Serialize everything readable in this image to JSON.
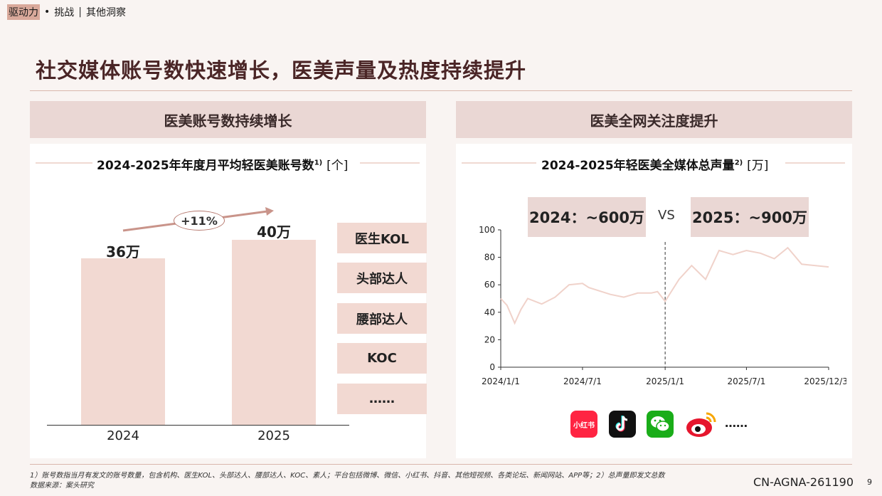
{
  "breadcrumb": {
    "active": "驱动力",
    "separator": "•",
    "item2": "挑战",
    "bar": "|",
    "item3": "其他洞察"
  },
  "page_title": "社交媒体账号数快速增长，医美声量及热度持续提升",
  "left_panel": {
    "header": "医美账号数持续增长",
    "subtitle": "2024-2025年年度月平均轻医美账号数",
    "footnote_mark": "1)",
    "unit": "[个]",
    "growth_label": "+11%",
    "categories": [
      "医生KOL",
      "头部达人",
      "腰部达人",
      "KOC",
      "……"
    ]
  },
  "right_panel": {
    "header": "医美全网关注度提升",
    "subtitle": "2024-2025年轻医美全媒体总声量",
    "footnote_mark": "2)",
    "unit": "[万]",
    "compare_2024": "2024：~600万",
    "vs": "VS",
    "compare_2025": "2025：~900万",
    "platforms_more": "……",
    "platform_icons": [
      "xiaohongshu-icon",
      "douyin-icon",
      "wechat-icon",
      "weibo-icon"
    ],
    "xiaohongshu_label": "小红书"
  },
  "chart_data": [
    {
      "type": "bar",
      "categories": [
        "2024",
        "2025"
      ],
      "values": [
        36,
        40
      ],
      "value_labels": [
        "36万",
        "40万"
      ],
      "ylim": [
        0,
        60
      ]
    },
    {
      "type": "line",
      "x_ticks": [
        "2024/1/1",
        "2024/7/1",
        "2025/1/1",
        "2025/7/1",
        "2025/12/31"
      ],
      "y_ticks": [
        0,
        20,
        40,
        60,
        80,
        100
      ],
      "ylim": [
        0,
        100
      ],
      "divider_at": "2025/1/1",
      "series": [
        {
          "x": [
            "2024/1/1",
            "2024/1/15",
            "2024/2/1",
            "2024/2/15",
            "2024/3/1",
            "2024/4/1",
            "2024/5/1",
            "2024/6/1",
            "2024/7/1",
            "2024/7/15",
            "2024/9/1",
            "2024/10/1",
            "2024/11/1",
            "2024/12/1",
            "2024/12/15",
            "2025/1/1",
            "2025/2/1",
            "2025/3/1",
            "2025/4/1",
            "2025/5/1",
            "2025/6/1",
            "2025/7/1",
            "2025/8/1",
            "2025/9/1",
            "2025/10/1",
            "2025/11/1",
            "2025/12/31"
          ],
          "y": [
            50,
            45,
            32,
            42,
            50,
            46,
            51,
            60,
            61,
            58,
            53,
            51,
            54,
            54,
            55,
            48,
            64,
            74,
            64,
            85,
            82,
            85,
            83,
            79,
            87,
            75,
            73
          ]
        }
      ],
      "colors": {
        "line": "#f0d2ca",
        "divider": "#333333"
      }
    }
  ],
  "footer": {
    "note1": "1）账号数指当月有发文的账号数量，包含机构、医生KOL、头部达人、腰部达人、KOC、素人；平台包括微博、微信、小红书、抖音、其他短视频、各类论坛、新闻网站、APP等；2）总声量即发文总数",
    "source": "数据来源：案头研究",
    "doc_code": "CN-AGNA-261190",
    "page_number": "9"
  },
  "colors": {
    "background": "#f9f4f2",
    "title": "#4a2526",
    "header_fill": "#ead7d4",
    "bar_fill": "#f2d9d2"
  }
}
